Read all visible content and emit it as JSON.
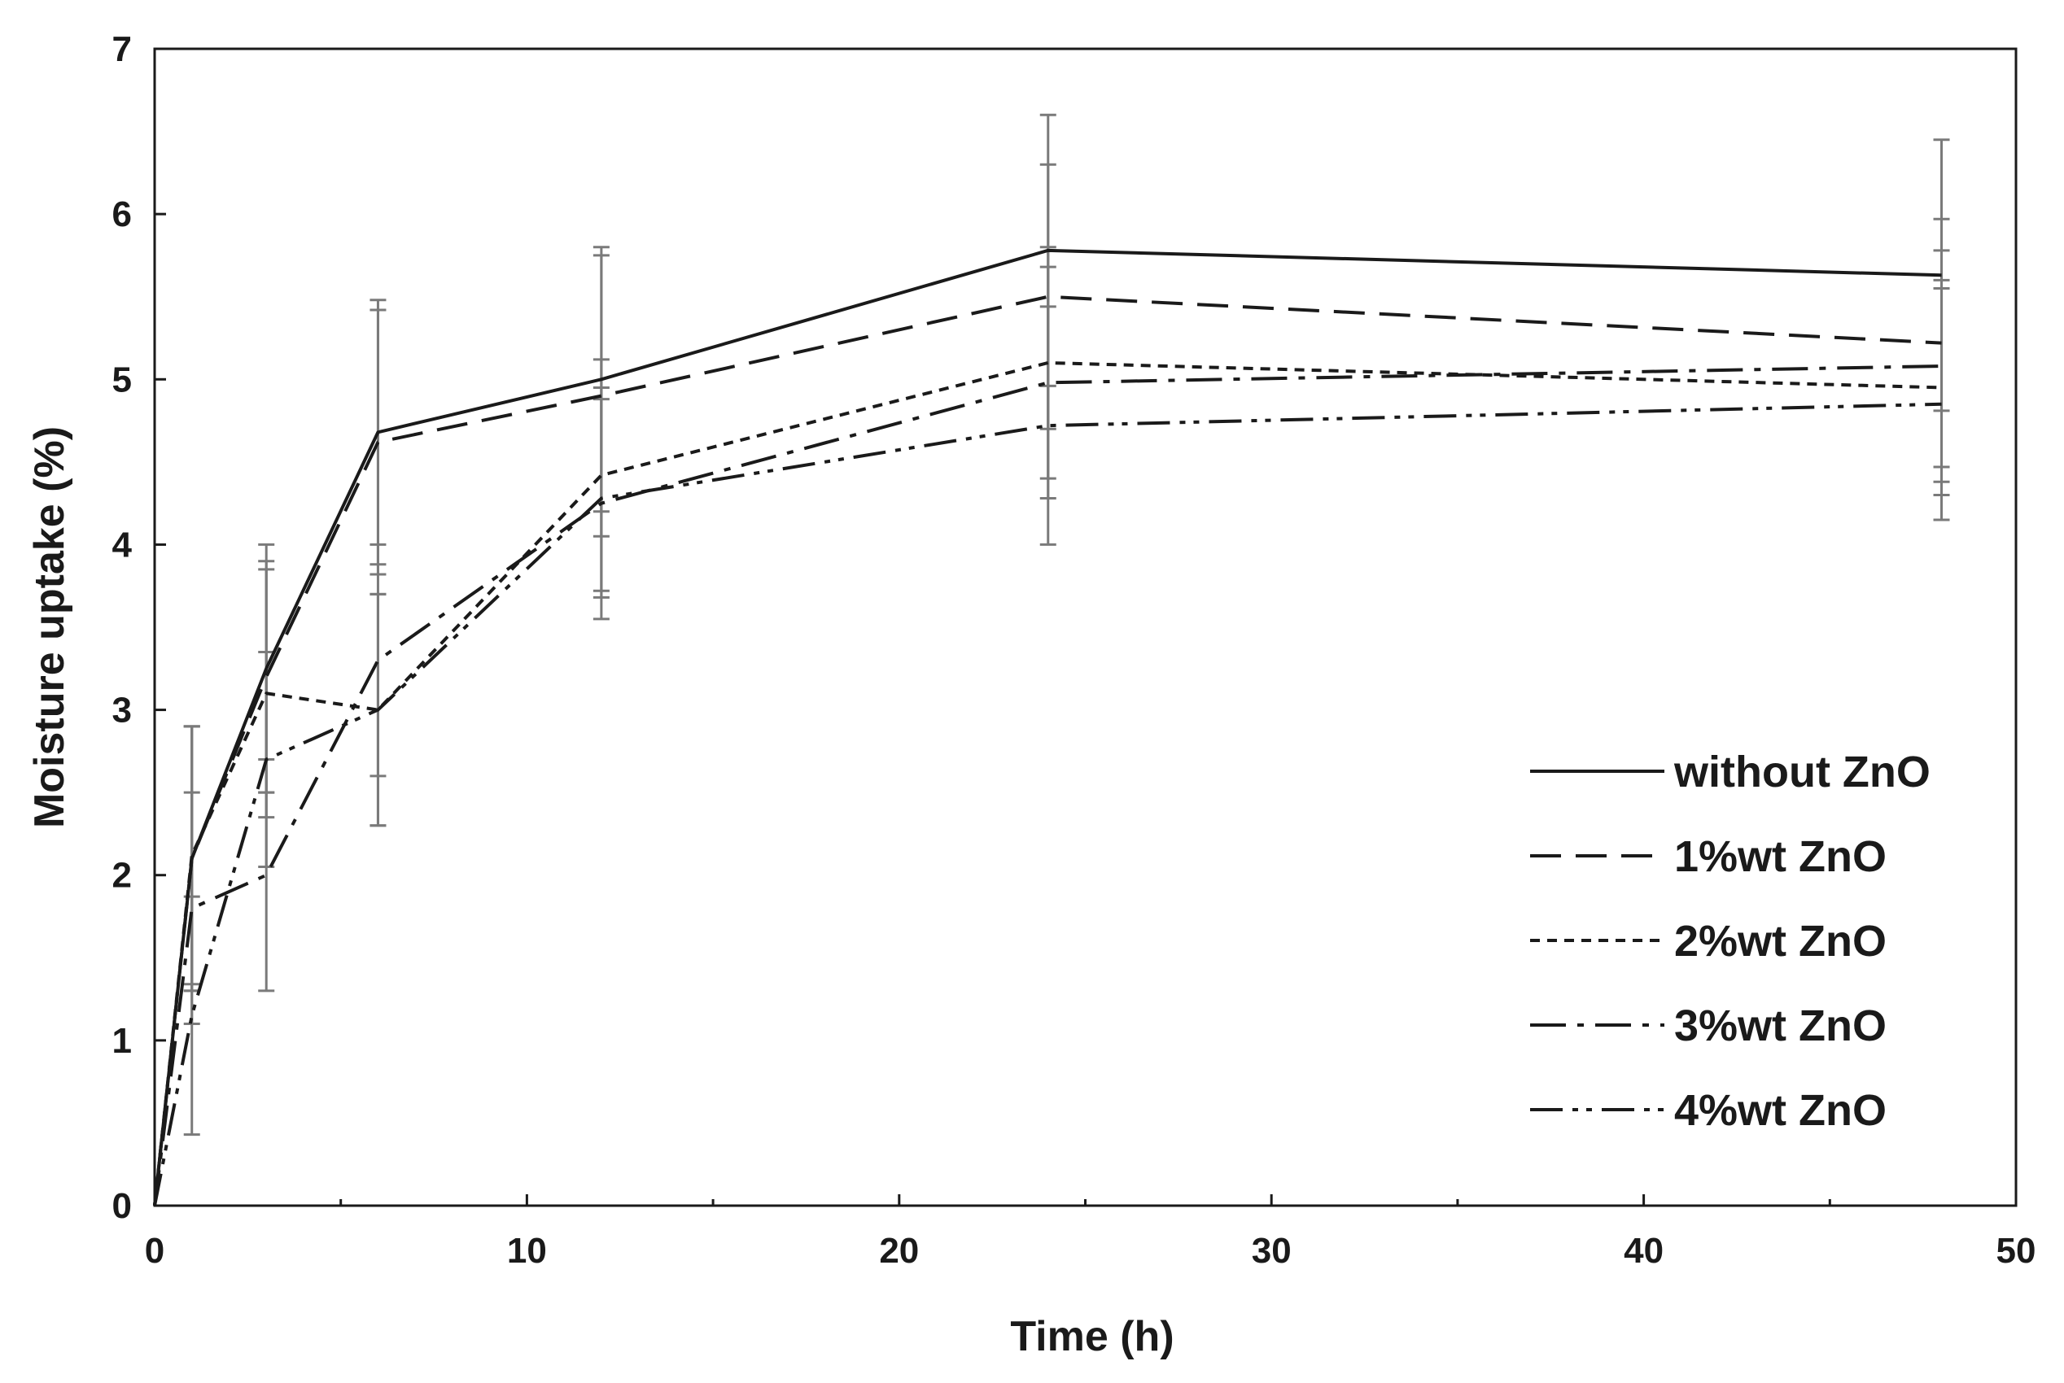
{
  "chart_data": {
    "type": "line",
    "title": "",
    "xlabel": "Time (h)",
    "ylabel": "Moisture uptake (%)",
    "xlim": [
      0,
      50
    ],
    "ylim": [
      0,
      7
    ],
    "xticks": [
      0,
      10,
      20,
      30,
      40,
      50
    ],
    "yticks": [
      0,
      1,
      2,
      3,
      4,
      5,
      6,
      7
    ],
    "grid": false,
    "legend_position": "bottom-right",
    "x": [
      0,
      1,
      3,
      6,
      12,
      24,
      48
    ],
    "series": [
      {
        "name": "without ZnO",
        "dash": "solid",
        "values": [
          0,
          2.1,
          3.25,
          4.68,
          5.0,
          5.78,
          5.63
        ],
        "errors": [
          0,
          0.8,
          0.75,
          0.8,
          0.8,
          0.82,
          0.82
        ]
      },
      {
        "name": "1%wt ZnO",
        "dash": "dashed",
        "values": [
          0,
          2.1,
          3.2,
          4.62,
          4.9,
          5.5,
          5.22
        ],
        "errors": [
          0,
          0.8,
          0.7,
          0.8,
          0.85,
          0.8,
          0.75
        ]
      },
      {
        "name": "2%wt ZnO",
        "dash": "dotted",
        "values": [
          0,
          2.12,
          3.1,
          3.0,
          4.42,
          5.1,
          4.95
        ],
        "errors": [
          0,
          0.78,
          0.75,
          0.7,
          0.7,
          0.7,
          0.65
        ]
      },
      {
        "name": "3%wt ZnO",
        "dash": "dash-dot",
        "values": [
          0,
          1.8,
          2.0,
          3.3,
          4.25,
          4.98,
          5.08
        ],
        "errors": [
          0,
          0.7,
          0.7,
          0.7,
          0.7,
          0.7,
          0.7
        ]
      },
      {
        "name": "4%wt ZnO",
        "dash": "dash-dot-dot",
        "values": [
          0,
          1.15,
          2.7,
          3.0,
          4.28,
          4.72,
          4.85
        ],
        "errors": [
          0,
          0.72,
          0.65,
          0.7,
          0.6,
          0.72,
          0.7
        ]
      }
    ],
    "colors": {
      "line": "#1a1a1a",
      "errorbar": "#7a7a7a",
      "axis": "#1a1a1a"
    }
  }
}
